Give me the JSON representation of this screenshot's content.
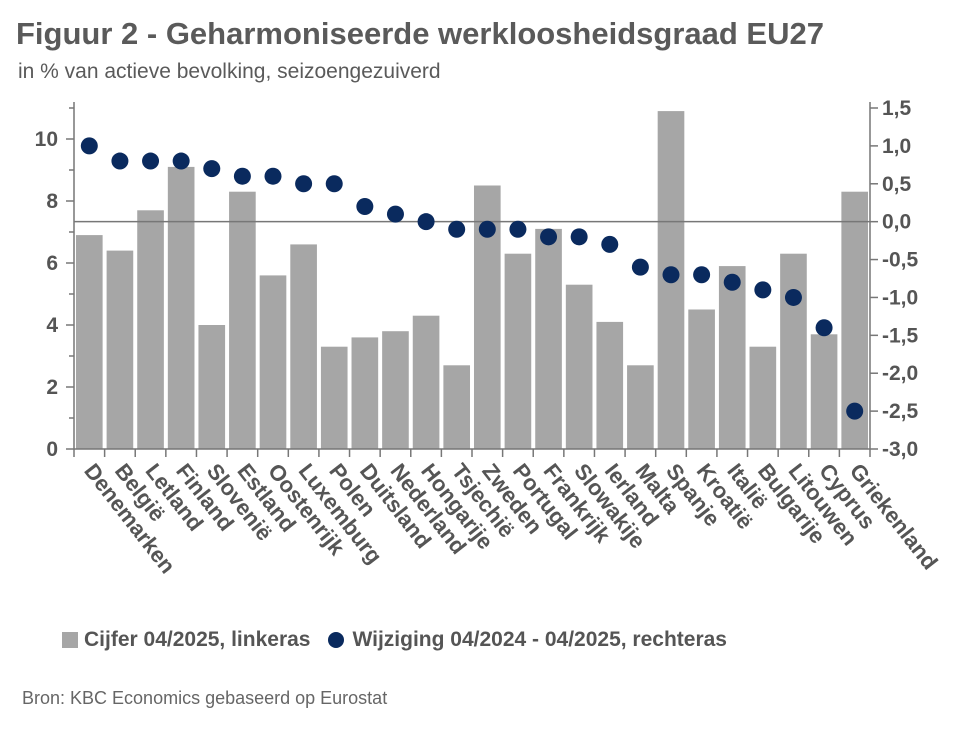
{
  "title": "Figuur 2 - Geharmoniseerde werkloosheidsgraad EU27",
  "subtitle": "in % van actieve bevolking, seizoengezuiverd",
  "source": "Bron: KBC Economics gebaseerd op Eurostat",
  "colors": {
    "bar": "#a6a6a6",
    "dot": "#0a2a5e",
    "axis": "#777777",
    "text": "#555555"
  },
  "chart_data": {
    "type": "bar",
    "categories": [
      "Denemarken",
      "België",
      "Letland",
      "Finland",
      "Slovenië",
      "Estland",
      "Oostenrijk",
      "Luxemburg",
      "Polen",
      "Duitsland",
      "Nederland",
      "Hongarije",
      "Tsjechië",
      "Zweden",
      "Portugal",
      "Frankrijk",
      "Slowakije",
      "Ierland",
      "Malta",
      "Spanje",
      "Kroatië",
      "Italië",
      "Bulgarije",
      "Litouwen",
      "Cyprus",
      "Griekenland"
    ],
    "series": [
      {
        "name": "Cijfer 04/2025, linkeras",
        "type": "bar",
        "axis": "left",
        "values": [
          6.9,
          6.4,
          7.7,
          9.1,
          4.0,
          8.3,
          5.6,
          6.6,
          3.3,
          3.6,
          3.8,
          4.3,
          2.7,
          8.5,
          6.3,
          7.1,
          5.3,
          4.1,
          2.7,
          10.9,
          4.5,
          5.9,
          3.3,
          6.3,
          3.7,
          8.3
        ]
      },
      {
        "name": "Wijziging 04/2024 - 04/2025, rechteras",
        "type": "scatter",
        "axis": "right",
        "values": [
          1.0,
          0.8,
          0.8,
          0.8,
          0.7,
          0.6,
          0.6,
          0.5,
          0.5,
          0.2,
          0.1,
          0.0,
          -0.1,
          -0.1,
          -0.1,
          -0.2,
          -0.2,
          -0.3,
          -0.6,
          -0.7,
          -0.7,
          -0.8,
          -0.9,
          -1.0,
          -1.4,
          -2.5
        ]
      }
    ],
    "y_left": {
      "ticks": [
        "0",
        "2",
        "4",
        "6",
        "8",
        "10"
      ],
      "range": [
        0,
        11
      ]
    },
    "y_right": {
      "ticks": [
        "1,5",
        "1,0",
        "0,5",
        "0,0",
        "-0,5",
        "-1,0",
        "-1,5",
        "-2,0",
        "-2,5",
        "-3,0"
      ],
      "range": [
        -3.0,
        1.5
      ]
    },
    "legend_position": "bottom",
    "grid": false
  }
}
